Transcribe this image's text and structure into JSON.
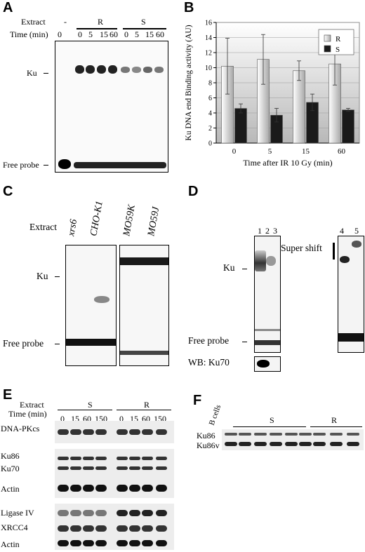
{
  "panels": {
    "A": {
      "label": "A",
      "extract_label": "Extract",
      "time_label": "Time (min)",
      "extract_groups": [
        "-",
        "R",
        "S"
      ],
      "times": [
        "0",
        "0",
        "5",
        "15",
        "60",
        "0",
        "5",
        "15",
        "60"
      ],
      "ku_label": "Ku",
      "free_probe_label": "Free probe"
    },
    "B": {
      "label": "B"
    },
    "C": {
      "label": "C",
      "extract_label": "Extract",
      "lanes": [
        "xrs6",
        "CHO-K1",
        "MO59K",
        "MO59J"
      ],
      "ku_label": "Ku",
      "free_probe_label": "Free probe"
    },
    "D": {
      "label": "D",
      "lane_numbers": [
        "1",
        "2",
        "3",
        "4",
        "5"
      ],
      "super_shift_label": "Super shift",
      "ku_label": "Ku",
      "free_probe_label": "Free probe",
      "wb_label": "WB: Ku70"
    },
    "E": {
      "label": "E",
      "extract_label": "Extract",
      "time_label": "Time (min)",
      "groups": [
        "S",
        "R"
      ],
      "times": [
        "0",
        "15",
        "60",
        "150",
        "0",
        "15",
        "60",
        "150"
      ],
      "rows": [
        "DNA-PKcs",
        "Ku86",
        "Ku70",
        "Actin",
        "Ligase IV",
        "XRCC4",
        "Actin"
      ]
    },
    "F": {
      "label": "F",
      "b_cells_label": "B cells",
      "groups": [
        "S",
        "R"
      ],
      "rows": [
        "Ku86",
        "Ku86v"
      ]
    }
  },
  "chart_data": {
    "type": "bar",
    "title": "",
    "xlabel": "Time after IR 10 Gy (min)",
    "ylabel": "Ku DNA end Binding activity (AU)",
    "categories": [
      "0",
      "5",
      "15",
      "60"
    ],
    "series": [
      {
        "name": "R",
        "values": [
          10.2,
          11.1,
          9.6,
          10.5
        ],
        "error": [
          3.7,
          3.3,
          1.3,
          2.8
        ],
        "color": "#d8d8d8"
      },
      {
        "name": "S",
        "values": [
          4.6,
          3.7,
          5.4,
          4.4
        ],
        "error": [
          0.6,
          0.9,
          1.1,
          0.2
        ],
        "color": "#1a1a1a"
      }
    ],
    "ylim": [
      0,
      16
    ],
    "yticks": [
      "0",
      "2",
      "4",
      "6",
      "8",
      "10",
      "12",
      "14",
      "16"
    ],
    "grid": true,
    "legend": "top-right"
  }
}
